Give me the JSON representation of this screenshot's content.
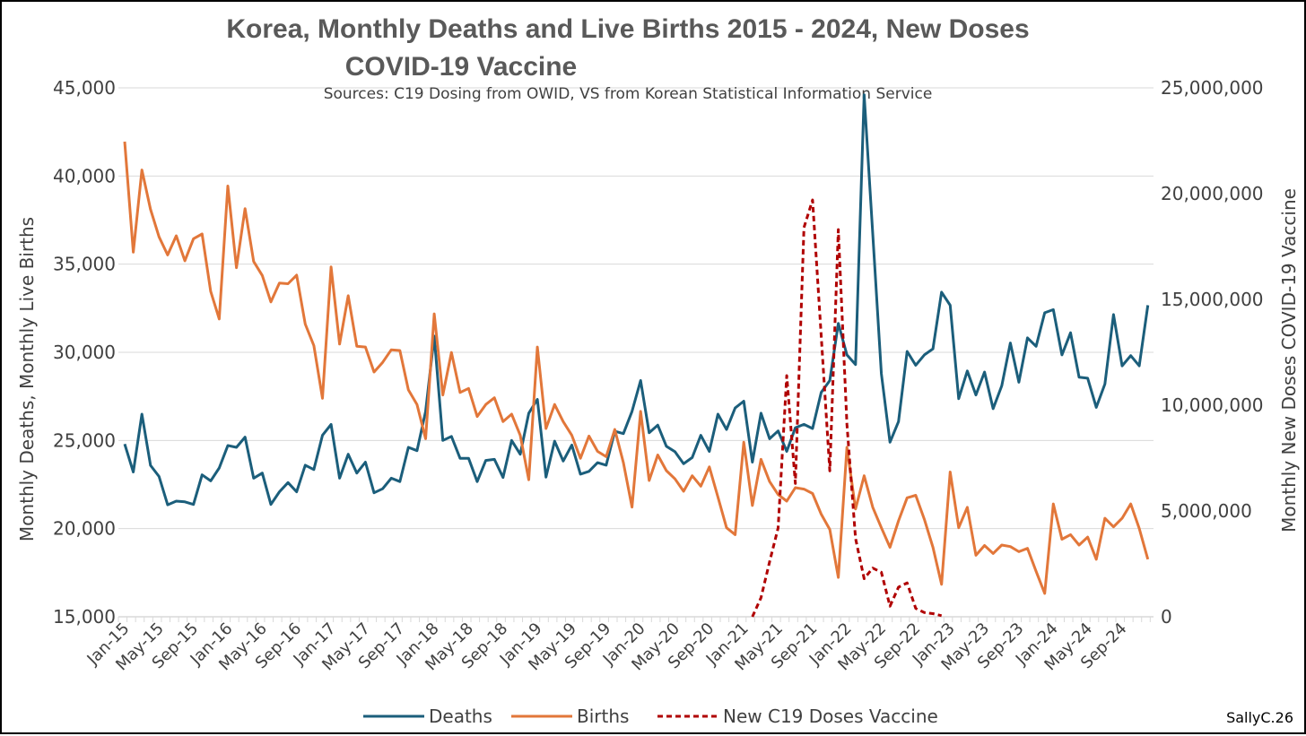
{
  "chart_data": {
    "type": "line",
    "title": "Korea, Monthly Deaths and Live Births 2015 - 2024, New Doses COVID-19 Vaccine",
    "title_lines": [
      "Korea, Monthly Deaths and Live Births 2015 - 2024, New Doses",
      "COVID-19 Vaccine"
    ],
    "subtitle": "Sources:  C19 Dosing from OWID, VS from  Korean Statistical Information Service",
    "ylabel": "Monthly Deaths, Monthly Live Births",
    "y2label": "Monthly New Doses COVID-19 Vaccine",
    "ylim": [
      15000,
      45000
    ],
    "y2lim": [
      0,
      25000000
    ],
    "yticks": [
      "15,000",
      "20,000",
      "25,000",
      "30,000",
      "35,000",
      "40,000",
      "45,000"
    ],
    "y2ticks": [
      "0",
      "5,000,000",
      "10,000,000",
      "15,000,000",
      "20,000,000",
      "25,000,000"
    ],
    "x_start": "Jan-15",
    "x_count": 120,
    "xticks": [
      "Jan-15",
      "May-15",
      "Sep-15",
      "Jan-16",
      "May-16",
      "Sep-16",
      "Jan-17",
      "May-17",
      "Sep-17",
      "Jan-18",
      "May-18",
      "Sep-18",
      "Jan-19",
      "May-19",
      "Sep-19",
      "Jan-20",
      "May-20",
      "Sep-20",
      "Jan-21",
      "May-21",
      "Sep-21",
      "Jan-22",
      "May-22",
      "Sep-22",
      "Jan-23",
      "May-23",
      "Sep-23",
      "Jan-24",
      "May-24",
      "Sep-24"
    ],
    "grid": true,
    "legend_position": "bottom",
    "series": [
      {
        "name": "Deaths",
        "axis": "left",
        "color": "#1b5e7b",
        "style": "solid",
        "values": [
          24800,
          23210,
          26490,
          23590,
          22960,
          21350,
          21560,
          21520,
          21370,
          23050,
          22710,
          23440,
          24710,
          24610,
          25190,
          22860,
          23150,
          21370,
          22090,
          22610,
          22090,
          23600,
          23350,
          25290,
          25910,
          22860,
          24220,
          23150,
          23770,
          22030,
          22260,
          22860,
          22670,
          24610,
          24420,
          26650,
          30920,
          25000,
          25230,
          23990,
          23990,
          22670,
          23870,
          23930,
          22900,
          25000,
          24220,
          26550,
          27330,
          22920,
          24960,
          23830,
          24740,
          23090,
          23250,
          23740,
          23600,
          25520,
          25390,
          26650,
          28400,
          25440,
          25870,
          24670,
          24360,
          23680,
          24030,
          25290,
          24380,
          26490,
          25620,
          26840,
          27230,
          23770,
          26550,
          25100,
          25540,
          24380,
          25720,
          25910,
          25680,
          27720,
          28400,
          31640,
          29850,
          29310,
          44610,
          36710,
          28780,
          24900,
          26070,
          30050,
          29270,
          29850,
          30200,
          33410,
          32670,
          27370,
          28940,
          27580,
          28880,
          26800,
          28100,
          30530,
          28300,
          30820,
          30340,
          32240,
          32420,
          29850,
          31110,
          28590,
          28530,
          26880,
          28200,
          32140,
          29230,
          29810,
          29230,
          32670
        ]
      },
      {
        "name": "Births",
        "axis": "left",
        "color": "#e2773a",
        "style": "solid",
        "values": [
          41950,
          35680,
          40340,
          38110,
          36550,
          35520,
          36610,
          35190,
          36440,
          36710,
          33450,
          31890,
          39430,
          34800,
          38150,
          35150,
          34360,
          32860,
          33930,
          33890,
          34380,
          31600,
          30380,
          27390,
          34840,
          30470,
          33210,
          30340,
          30300,
          28880,
          29430,
          30140,
          30100,
          27870,
          27040,
          25100,
          32180,
          27580,
          29990,
          27720,
          27950,
          26360,
          27040,
          27420,
          26070,
          26490,
          25290,
          22770,
          30300,
          25680,
          27040,
          26070,
          25290,
          23990,
          25250,
          24380,
          24080,
          25620,
          23740,
          21220,
          26650,
          22730,
          24180,
          23290,
          22820,
          22120,
          23000,
          22410,
          23500,
          21790,
          20050,
          19660,
          24900,
          21310,
          23930,
          22670,
          21930,
          21560,
          22320,
          22240,
          21990,
          20820,
          19950,
          17230,
          24610,
          21110,
          23000,
          21210,
          20050,
          18940,
          20440,
          21750,
          21890,
          20530,
          18940,
          16840,
          23210,
          20050,
          21210,
          18490,
          19040,
          18590,
          19070,
          18980,
          18690,
          18880,
          17580,
          16320,
          21400,
          19400,
          19660,
          19070,
          19520,
          18260,
          20590,
          20100,
          20590,
          21400,
          20010,
          18260
        ]
      },
      {
        "name": "New C19 Doses Vaccine",
        "axis": "right",
        "color": "#b00000",
        "style": "dashed",
        "values": [
          null,
          null,
          null,
          null,
          null,
          null,
          null,
          null,
          null,
          null,
          null,
          null,
          null,
          null,
          null,
          null,
          null,
          null,
          null,
          null,
          null,
          null,
          null,
          null,
          null,
          null,
          null,
          null,
          null,
          null,
          null,
          null,
          null,
          null,
          null,
          null,
          null,
          null,
          null,
          null,
          null,
          null,
          null,
          null,
          null,
          null,
          null,
          null,
          null,
          null,
          null,
          null,
          null,
          null,
          null,
          null,
          null,
          null,
          null,
          null,
          null,
          null,
          null,
          null,
          null,
          null,
          null,
          null,
          null,
          null,
          null,
          null,
          null,
          0,
          900000,
          2600000,
          4200000,
          11400000,
          6300000,
          18400000,
          19700000,
          13300000,
          6900000,
          18300000,
          9100000,
          3700000,
          1800000,
          2300000,
          2100000,
          500000,
          1400000,
          1600000,
          400000,
          200000,
          150000,
          50000,
          null,
          null,
          null,
          null,
          null,
          null,
          null,
          null,
          null,
          null,
          null,
          null,
          null,
          null,
          null,
          null,
          null,
          null,
          null,
          null,
          null,
          null,
          null,
          null
        ]
      }
    ],
    "credit": "SallyC.26"
  }
}
